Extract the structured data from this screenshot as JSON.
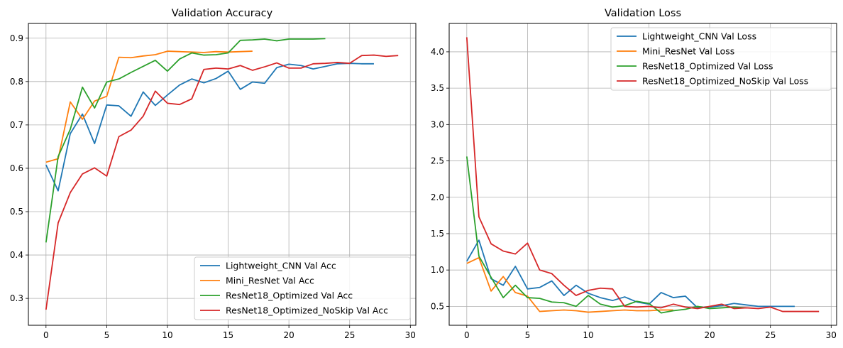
{
  "chart_data": [
    {
      "type": "line",
      "title": "Validation Accuracy",
      "xlabel": "",
      "ylabel": "",
      "xlim": [
        -1.45,
        30.45
      ],
      "ylim": [
        0.238,
        0.934
      ],
      "xticks": [
        0,
        5,
        10,
        15,
        20,
        25,
        30
      ],
      "yticks": [
        0.3,
        0.4,
        0.5,
        0.6,
        0.7,
        0.8,
        0.9
      ],
      "grid": true,
      "legend_position": "lower-right",
      "series": [
        {
          "name": "Lightweight_CNN Val Acc",
          "color": "#1f77b4",
          "x": [
            0,
            1,
            2,
            3,
            4,
            5,
            6,
            7,
            8,
            9,
            10,
            11,
            12,
            13,
            14,
            15,
            16,
            17,
            18,
            19,
            20,
            21,
            22,
            23,
            24,
            25,
            26,
            27
          ],
          "y": [
            0.608,
            0.548,
            0.68,
            0.725,
            0.657,
            0.746,
            0.744,
            0.72,
            0.776,
            0.745,
            0.769,
            0.792,
            0.806,
            0.797,
            0.807,
            0.824,
            0.782,
            0.799,
            0.796,
            0.832,
            0.84,
            0.837,
            0.829,
            0.835,
            0.841,
            0.842,
            0.841,
            0.841
          ]
        },
        {
          "name": "Mini_ResNet Val Acc",
          "color": "#ff7f0e",
          "x": [
            0,
            1,
            2,
            3,
            4,
            5,
            6,
            7,
            8,
            9,
            10,
            11,
            12,
            13,
            14,
            15,
            16,
            17
          ],
          "y": [
            0.614,
            0.622,
            0.753,
            0.713,
            0.755,
            0.766,
            0.856,
            0.855,
            0.859,
            0.862,
            0.87,
            0.869,
            0.868,
            0.867,
            0.869,
            0.868,
            0.869,
            0.87
          ]
        },
        {
          "name": "ResNet18_Optimized Val Acc",
          "color": "#2ca02c",
          "x": [
            0,
            1,
            2,
            3,
            4,
            5,
            6,
            7,
            8,
            9,
            10,
            11,
            12,
            13,
            14,
            15,
            16,
            17,
            18,
            19,
            20,
            21,
            22,
            23
          ],
          "y": [
            0.429,
            0.627,
            0.69,
            0.787,
            0.739,
            0.799,
            0.806,
            0.821,
            0.835,
            0.849,
            0.824,
            0.852,
            0.866,
            0.861,
            0.862,
            0.866,
            0.895,
            0.896,
            0.898,
            0.894,
            0.898,
            0.898,
            0.898,
            0.899
          ]
        },
        {
          "name": "ResNet18_Optimized_NoSkip Val Acc",
          "color": "#d62728",
          "x": [
            0,
            1,
            2,
            3,
            4,
            5,
            6,
            7,
            8,
            9,
            10,
            11,
            12,
            13,
            14,
            15,
            16,
            17,
            18,
            19,
            20,
            21,
            22,
            23,
            24,
            25,
            26,
            27,
            28,
            29
          ],
          "y": [
            0.274,
            0.474,
            0.544,
            0.587,
            0.601,
            0.582,
            0.673,
            0.688,
            0.72,
            0.778,
            0.75,
            0.747,
            0.76,
            0.828,
            0.831,
            0.829,
            0.837,
            0.826,
            0.834,
            0.843,
            0.831,
            0.831,
            0.841,
            0.842,
            0.844,
            0.842,
            0.86,
            0.861,
            0.858,
            0.86
          ]
        }
      ]
    },
    {
      "type": "line",
      "title": "Validation Loss",
      "xlabel": "",
      "ylabel": "",
      "xlim": [
        -1.45,
        30.45
      ],
      "ylim": [
        0.24,
        4.39
      ],
      "xticks": [
        0,
        5,
        10,
        15,
        20,
        25,
        30
      ],
      "yticks": [
        0.5,
        1.0,
        1.5,
        2.0,
        2.5,
        3.0,
        3.5,
        4.0
      ],
      "grid": true,
      "legend_position": "upper-right",
      "series": [
        {
          "name": "Lightweight_CNN Val Loss",
          "color": "#1f77b4",
          "x": [
            0,
            1,
            2,
            3,
            4,
            5,
            6,
            7,
            8,
            9,
            10,
            11,
            12,
            13,
            14,
            15,
            16,
            17,
            18,
            19,
            20,
            21,
            22,
            23,
            24,
            25,
            26,
            27
          ],
          "y": [
            1.12,
            1.41,
            0.88,
            0.79,
            1.05,
            0.74,
            0.76,
            0.85,
            0.65,
            0.79,
            0.68,
            0.62,
            0.58,
            0.63,
            0.56,
            0.53,
            0.69,
            0.62,
            0.64,
            0.48,
            0.49,
            0.51,
            0.54,
            0.52,
            0.5,
            0.5,
            0.5,
            0.5
          ]
        },
        {
          "name": "Mini_ResNet Val Loss",
          "color": "#ff7f0e",
          "x": [
            0,
            1,
            2,
            3,
            4,
            5,
            6,
            7,
            8,
            9,
            10,
            11,
            12,
            13,
            14,
            15,
            16,
            17
          ],
          "y": [
            1.09,
            1.17,
            0.71,
            0.91,
            0.69,
            0.64,
            0.43,
            0.44,
            0.45,
            0.44,
            0.42,
            0.43,
            0.44,
            0.45,
            0.44,
            0.44,
            0.45,
            0.45
          ]
        },
        {
          "name": "ResNet18_Optimized Val Loss",
          "color": "#2ca02c",
          "x": [
            0,
            1,
            2,
            3,
            4,
            5,
            6,
            7,
            8,
            9,
            10,
            11,
            12,
            13,
            14,
            15,
            16,
            17,
            18,
            19,
            20,
            21,
            22,
            23
          ],
          "y": [
            2.56,
            1.19,
            0.9,
            0.62,
            0.79,
            0.62,
            0.61,
            0.56,
            0.55,
            0.5,
            0.65,
            0.53,
            0.49,
            0.51,
            0.57,
            0.54,
            0.41,
            0.44,
            0.46,
            0.5,
            0.47,
            0.48,
            0.49,
            0.48
          ]
        },
        {
          "name": "ResNet18_Optimized_NoSkip Val Loss",
          "color": "#d62728",
          "x": [
            0,
            1,
            2,
            3,
            4,
            5,
            6,
            7,
            8,
            9,
            10,
            11,
            12,
            13,
            14,
            15,
            16,
            17,
            18,
            19,
            20,
            21,
            22,
            23,
            24,
            25,
            26,
            27,
            28,
            29
          ],
          "y": [
            4.2,
            1.73,
            1.36,
            1.26,
            1.22,
            1.37,
            1.0,
            0.95,
            0.79,
            0.65,
            0.72,
            0.75,
            0.74,
            0.5,
            0.49,
            0.5,
            0.48,
            0.53,
            0.49,
            0.47,
            0.5,
            0.53,
            0.47,
            0.48,
            0.47,
            0.49,
            0.43,
            0.43,
            0.43,
            0.43
          ]
        }
      ]
    }
  ]
}
